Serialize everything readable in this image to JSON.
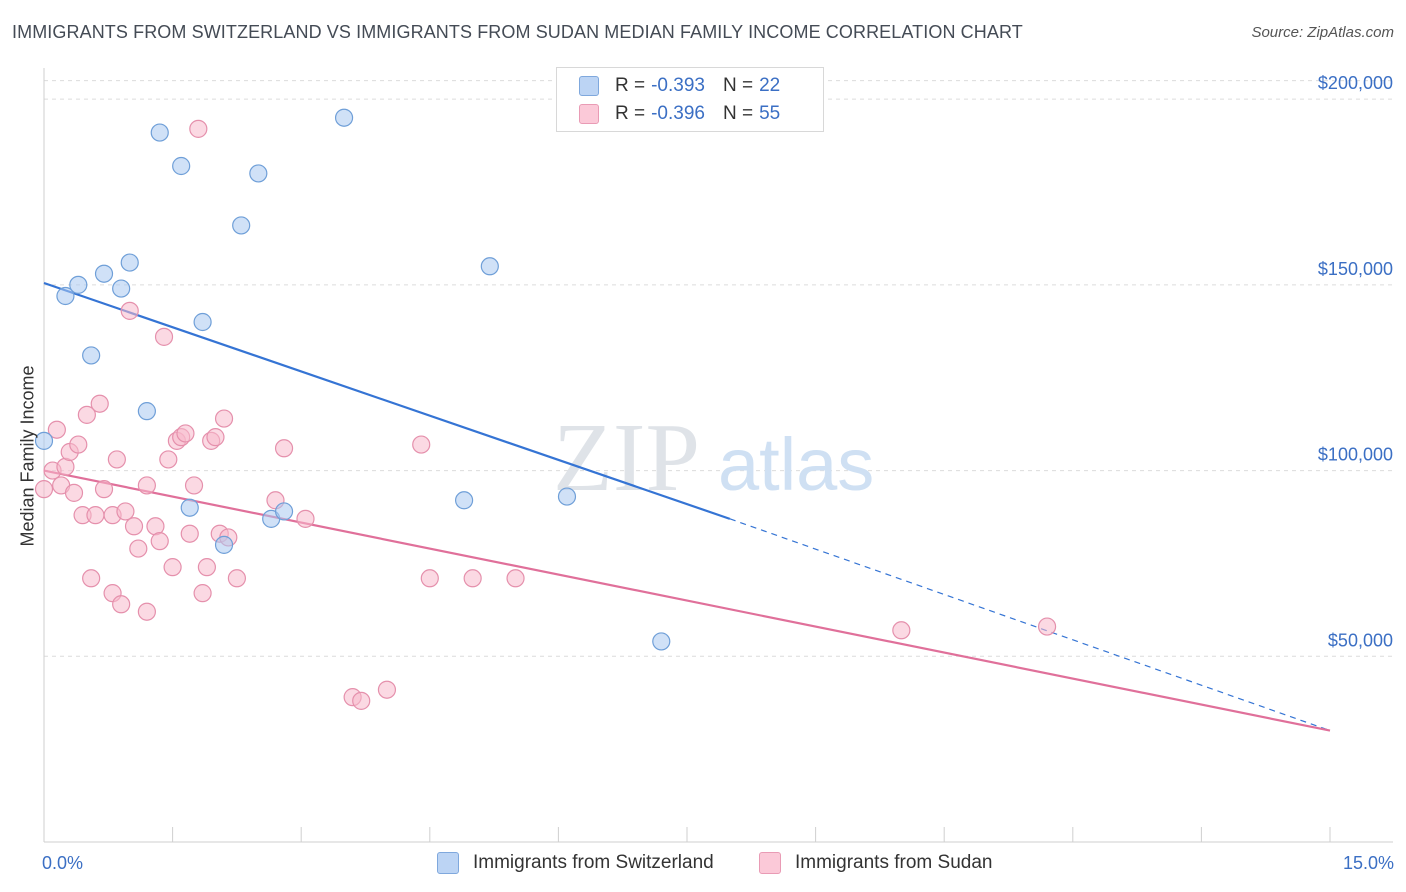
{
  "title": "IMMIGRANTS FROM SWITZERLAND VS IMMIGRANTS FROM SUDAN MEDIAN FAMILY INCOME CORRELATION CHART",
  "source": "Source: ZipAtlas.com",
  "watermark": {
    "zip": "ZIP",
    "atlas": "atlas"
  },
  "legend": [
    {
      "r_label": "R =",
      "r_value": "-0.393",
      "n_label": "N =",
      "n_value": "22"
    },
    {
      "r_label": "R =",
      "r_value": "-0.396",
      "n_label": "N =",
      "n_value": "55"
    }
  ],
  "x_axis": {
    "min_label": "0.0%",
    "max_label": "15.0%"
  },
  "chart_data": {
    "type": "scatter",
    "ylabel": "Median Family Income",
    "xlim": [
      0,
      15
    ],
    "ylim": [
      0,
      210000
    ],
    "y_ticks": [
      {
        "value": 50000,
        "label": "$50,000"
      },
      {
        "value": 100000,
        "label": "$100,000"
      },
      {
        "value": 150000,
        "label": "$150,000"
      },
      {
        "value": 200000,
        "label": "$200,000"
      }
    ],
    "grid": true,
    "legend_position": "top-center",
    "series": [
      {
        "name": "Immigrants from Switzerland",
        "color": "#a9c8f0",
        "stroke": "#6f9fd8",
        "line_color": "#3574d4",
        "trend": {
          "x": [
            0,
            8.0
          ],
          "y": [
            150500,
            87000
          ],
          "dashed_to": [
            15,
            30000
          ]
        },
        "points": [
          [
            0.0,
            108000
          ],
          [
            0.25,
            147000
          ],
          [
            0.4,
            150000
          ],
          [
            0.55,
            131000
          ],
          [
            0.7,
            153000
          ],
          [
            0.9,
            149000
          ],
          [
            1.0,
            156000
          ],
          [
            1.2,
            116000
          ],
          [
            1.35,
            191000
          ],
          [
            1.6,
            182000
          ],
          [
            1.7,
            90000
          ],
          [
            1.85,
            140000
          ],
          [
            2.1,
            80000
          ],
          [
            2.3,
            166000
          ],
          [
            2.5,
            180000
          ],
          [
            2.65,
            87000
          ],
          [
            2.8,
            89000
          ],
          [
            3.5,
            195000
          ],
          [
            4.9,
            92000
          ],
          [
            5.2,
            155000
          ],
          [
            6.1,
            93000
          ],
          [
            7.2,
            54000
          ]
        ]
      },
      {
        "name": "Immigrants from Sudan",
        "color": "#f7b9cc",
        "stroke": "#e590ac",
        "line_color": "#e0709a",
        "trend": {
          "x": [
            0,
            15
          ],
          "y": [
            100000,
            30000
          ]
        },
        "points": [
          [
            0.0,
            95000
          ],
          [
            0.1,
            100000
          ],
          [
            0.15,
            111000
          ],
          [
            0.2,
            96000
          ],
          [
            0.25,
            101000
          ],
          [
            0.3,
            105000
          ],
          [
            0.35,
            94000
          ],
          [
            0.4,
            107000
          ],
          [
            0.45,
            88000
          ],
          [
            0.5,
            115000
          ],
          [
            0.55,
            71000
          ],
          [
            0.6,
            88000
          ],
          [
            0.65,
            118000
          ],
          [
            0.7,
            95000
          ],
          [
            0.8,
            88000
          ],
          [
            0.8,
            67000
          ],
          [
            0.85,
            103000
          ],
          [
            0.9,
            64000
          ],
          [
            0.95,
            89000
          ],
          [
            1.0,
            143000
          ],
          [
            1.05,
            85000
          ],
          [
            1.1,
            79000
          ],
          [
            1.2,
            96000
          ],
          [
            1.2,
            62000
          ],
          [
            1.3,
            85000
          ],
          [
            1.35,
            81000
          ],
          [
            1.4,
            136000
          ],
          [
            1.45,
            103000
          ],
          [
            1.5,
            74000
          ],
          [
            1.55,
            108000
          ],
          [
            1.6,
            109000
          ],
          [
            1.65,
            110000
          ],
          [
            1.7,
            83000
          ],
          [
            1.75,
            96000
          ],
          [
            1.8,
            192000
          ],
          [
            1.85,
            67000
          ],
          [
            1.9,
            74000
          ],
          [
            1.95,
            108000
          ],
          [
            2.0,
            109000
          ],
          [
            2.05,
            83000
          ],
          [
            2.1,
            114000
          ],
          [
            2.15,
            82000
          ],
          [
            2.25,
            71000
          ],
          [
            2.7,
            92000
          ],
          [
            2.8,
            106000
          ],
          [
            3.05,
            87000
          ],
          [
            3.6,
            39000
          ],
          [
            3.7,
            38000
          ],
          [
            4.0,
            41000
          ],
          [
            4.4,
            107000
          ],
          [
            4.5,
            71000
          ],
          [
            5.0,
            71000
          ],
          [
            5.5,
            71000
          ],
          [
            10.0,
            57000
          ],
          [
            11.7,
            58000
          ]
        ]
      }
    ]
  }
}
